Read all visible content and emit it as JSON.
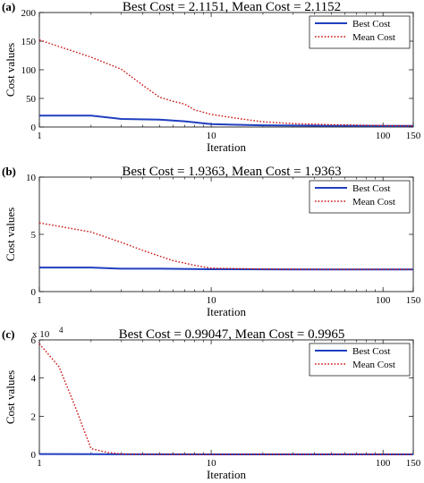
{
  "chart_data": [
    {
      "panel_label": "(a)",
      "type": "line",
      "title": "Best Cost = 2.1151, Mean Cost = 2.1152",
      "xlabel": "Iteration",
      "ylabel": "Cost values",
      "xscale": "log",
      "xlim": [
        1,
        150
      ],
      "ylim": [
        0,
        200
      ],
      "xticks": [
        "1",
        "10",
        "100",
        "150"
      ],
      "yticks": [
        "0",
        "50",
        "100",
        "150",
        "200"
      ],
      "y_exponent": "",
      "legend_position": "top-right",
      "series": [
        {
          "name": "Best Cost",
          "color": "#1f3fbf",
          "style": "solid",
          "x": [
            1,
            2,
            3,
            5,
            7,
            10,
            20,
            50,
            100,
            150
          ],
          "y": [
            20,
            20,
            14,
            13,
            10,
            5,
            3,
            2.2,
            2.1,
            2.1
          ]
        },
        {
          "name": "Mean Cost",
          "color": "#cc1111",
          "style": "dotted",
          "x": [
            1,
            2,
            3,
            4,
            5,
            6,
            7,
            8,
            10,
            15,
            20,
            30,
            50,
            100,
            150
          ],
          "y": [
            152,
            122,
            101,
            73,
            52,
            45,
            40,
            30,
            22,
            14,
            9,
            6,
            4,
            2.5,
            2.1
          ]
        }
      ]
    },
    {
      "panel_label": "(b)",
      "type": "line",
      "title": "Best Cost = 1.9363, Mean Cost = 1.9363",
      "xlabel": "Iteration",
      "ylabel": "Cost values",
      "xscale": "log",
      "xlim": [
        1,
        150
      ],
      "ylim": [
        0,
        10
      ],
      "xticks": [
        "1",
        "10",
        "100",
        "150"
      ],
      "yticks": [
        "0",
        "5",
        "10"
      ],
      "y_exponent": "",
      "legend_position": "top-right",
      "series": [
        {
          "name": "Best Cost",
          "color": "#1f3fbf",
          "style": "solid",
          "x": [
            1,
            2,
            3,
            5,
            10,
            30,
            150
          ],
          "y": [
            2.1,
            2.1,
            2.0,
            2.0,
            1.95,
            1.94,
            1.94
          ]
        },
        {
          "name": "Mean Cost",
          "color": "#cc1111",
          "style": "dotted",
          "x": [
            1,
            2,
            3,
            4,
            5,
            6,
            8,
            10,
            15,
            20,
            30,
            50,
            150
          ],
          "y": [
            6.0,
            5.2,
            4.3,
            3.6,
            3.1,
            2.7,
            2.3,
            2.05,
            2.0,
            1.97,
            1.95,
            1.94,
            1.94
          ]
        }
      ]
    },
    {
      "panel_label": "(c)",
      "type": "line",
      "title": "Best Cost = 0.99047, Mean Cost = 0.9965",
      "xlabel": "Iteration",
      "ylabel": "Cost values",
      "xscale": "log",
      "xlim": [
        1,
        150
      ],
      "ylim": [
        0,
        6
      ],
      "xticks": [
        "1",
        "10",
        "100",
        "150"
      ],
      "yticks": [
        "0",
        "2",
        "4",
        "6"
      ],
      "y_exponent": "x 10",
      "y_exponent_power": "4",
      "legend_position": "top-right",
      "series": [
        {
          "name": "Best Cost",
          "color": "#1f3fbf",
          "style": "solid",
          "x": [
            1,
            2,
            3,
            10,
            150
          ],
          "y": [
            0.02,
            0.01,
            0.005,
            0.0,
            0.0
          ]
        },
        {
          "name": "Mean Cost",
          "color": "#cc1111",
          "style": "dotted",
          "x": [
            1,
            1.3,
            1.6,
            2,
            2.5,
            3,
            5,
            10,
            150
          ],
          "y": [
            5.8,
            4.6,
            2.6,
            0.3,
            0.1,
            0.02,
            0.0,
            0.0,
            0.0
          ]
        }
      ]
    }
  ]
}
